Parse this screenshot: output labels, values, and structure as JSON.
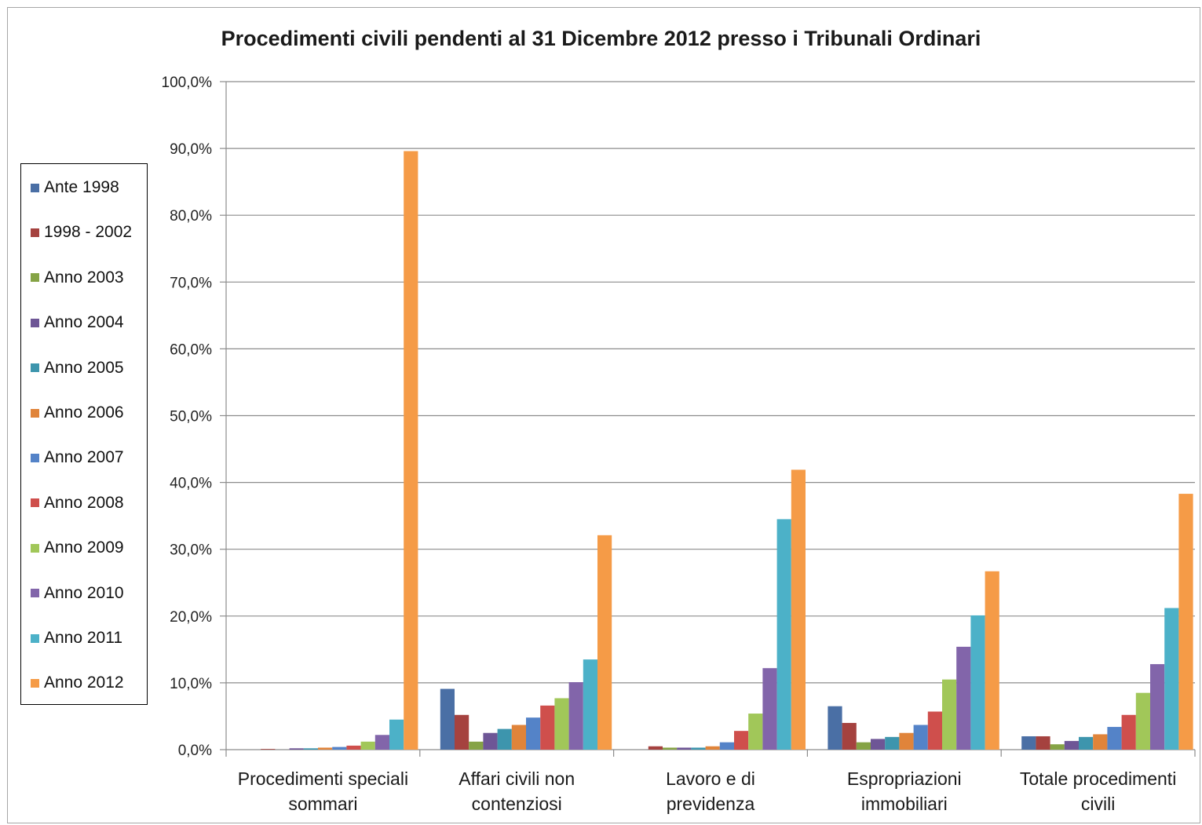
{
  "chart_data": {
    "type": "bar",
    "title": "Procedimenti civili pendenti al 31 Dicembre 2012 presso i Tribunali  Ordinari",
    "xlabel": "",
    "ylabel": "",
    "ylim": [
      0,
      100
    ],
    "yticks": [
      "0,0%",
      "10,0%",
      "20,0%",
      "30,0%",
      "40,0%",
      "50,0%",
      "60,0%",
      "70,0%",
      "80,0%",
      "90,0%",
      "100,0%"
    ],
    "grid": true,
    "legend_position": "left",
    "categories": [
      [
        "Procedimenti speciali",
        "sommari"
      ],
      [
        "Affari civili non",
        "contenziosi"
      ],
      [
        "Lavoro e di",
        "previdenza"
      ],
      [
        "Espropriazioni",
        "immobiliari"
      ],
      [
        "Totale procedimenti",
        "civili"
      ]
    ],
    "series": [
      {
        "name": "Ante 1998",
        "color": "#4a6fa5",
        "values": [
          0.0,
          9.1,
          0.0,
          6.5,
          2.0
        ]
      },
      {
        "name": "1998 - 2002",
        "color": "#a5423f",
        "values": [
          0.1,
          5.2,
          0.5,
          4.0,
          2.0
        ]
      },
      {
        "name": "Anno 2003",
        "color": "#85a345",
        "values": [
          0.0,
          1.2,
          0.3,
          1.1,
          0.8
        ]
      },
      {
        "name": "Anno 2004",
        "color": "#6e5696",
        "values": [
          0.2,
          2.5,
          0.3,
          1.6,
          1.3
        ]
      },
      {
        "name": "Anno 2005",
        "color": "#3d95ad",
        "values": [
          0.2,
          3.1,
          0.3,
          1.9,
          1.9
        ]
      },
      {
        "name": "Anno 2006",
        "color": "#e0843a",
        "values": [
          0.3,
          3.7,
          0.5,
          2.5,
          2.3
        ]
      },
      {
        "name": "Anno 2007",
        "color": "#5483c8",
        "values": [
          0.4,
          4.8,
          1.1,
          3.7,
          3.4
        ]
      },
      {
        "name": "Anno 2008",
        "color": "#cf4f4c",
        "values": [
          0.6,
          6.6,
          2.8,
          5.7,
          5.2
        ]
      },
      {
        "name": "Anno 2009",
        "color": "#a1c759",
        "values": [
          1.2,
          7.7,
          5.4,
          10.5,
          8.5
        ]
      },
      {
        "name": "Anno 2010",
        "color": "#8265aa",
        "values": [
          2.2,
          10.1,
          12.2,
          15.4,
          12.8
        ]
      },
      {
        "name": "Anno 2011",
        "color": "#4cb1c8",
        "values": [
          4.5,
          13.5,
          34.5,
          20.1,
          21.2
        ]
      },
      {
        "name": "Anno 2012",
        "color": "#f59b47",
        "values": [
          89.6,
          32.1,
          41.9,
          26.7,
          38.3
        ]
      }
    ]
  }
}
